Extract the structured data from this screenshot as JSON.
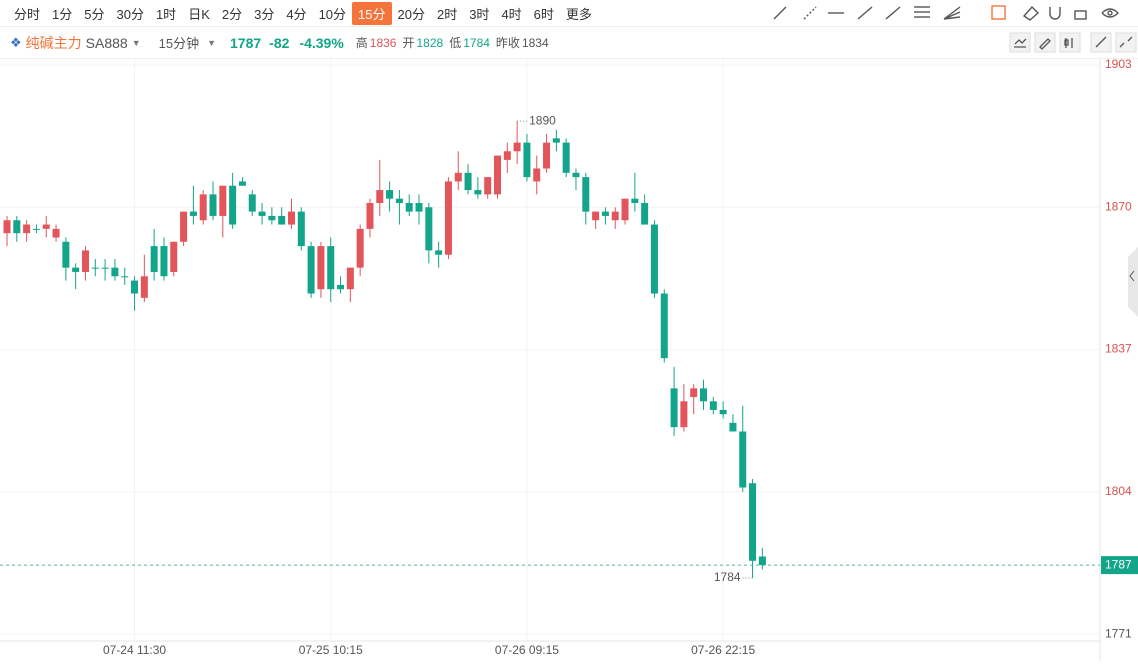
{
  "toolbar": {
    "intervals": [
      "分时",
      "1分",
      "5分",
      "30分",
      "1时",
      "日K",
      "2分",
      "3分",
      "4分",
      "10分",
      "15分",
      "20分",
      "2时",
      "3时",
      "4时",
      "6时",
      "更多"
    ],
    "active": 10
  },
  "header": {
    "name": "纯碱主力",
    "code": "SA888",
    "period": "15分钟",
    "price": 1787,
    "change": -82,
    "change_pct": "-4.39%",
    "stats": [
      {
        "label": "高",
        "value": 1836
      },
      {
        "label": "开",
        "value": 1828
      },
      {
        "label": "低",
        "value": 1784
      },
      {
        "label": "昨收",
        "value": 1834
      }
    ]
  },
  "chart_data": {
    "type": "candlestick",
    "categories": [
      null,
      null,
      null,
      null,
      null,
      null,
      null,
      null,
      null,
      null,
      null,
      null,
      null,
      "07-24 11:30",
      null,
      null,
      null,
      null,
      null,
      null,
      null,
      null,
      null,
      null,
      null,
      null,
      null,
      null,
      null,
      null,
      null,
      null,
      null,
      "07-25 10:15",
      null,
      null,
      null,
      null,
      null,
      null,
      null,
      null,
      null,
      null,
      null,
      null,
      null,
      null,
      null,
      null,
      null,
      null,
      null,
      "07-26 09:15",
      null,
      null,
      null,
      null,
      null,
      null,
      null,
      null,
      null,
      null,
      null,
      null,
      null,
      null,
      null,
      null,
      null,
      null,
      null,
      "07-26 22:15",
      null,
      null,
      null,
      null
    ],
    "open": [
      1864,
      1867,
      1864,
      1865,
      1865,
      1863,
      1862,
      1856,
      1855,
      1856,
      1856,
      1856,
      1854,
      1853,
      1849,
      1861,
      1861,
      1855,
      1862,
      1869,
      1867,
      1873,
      1868,
      1875,
      1876,
      1873,
      1869,
      1868,
      1868,
      1866,
      1869,
      1861,
      1851,
      1861,
      1852,
      1851,
      1856,
      1865,
      1871,
      1874,
      1872,
      1871,
      1871,
      1870,
      1860,
      1859,
      1876,
      1878,
      1874,
      1873,
      1873,
      1881,
      1883,
      1885,
      1876,
      1879,
      1886,
      1885,
      1878,
      1877,
      1867,
      1869,
      1867,
      1867,
      1872,
      1871,
      1866,
      1850,
      1828,
      1819,
      1826,
      1828,
      1825,
      1823,
      1820,
      1818,
      1806,
      1789
    ],
    "high": [
      1868,
      1868,
      1867,
      1866,
      1868,
      1866,
      1863,
      1857,
      1861,
      1858,
      1858,
      1858,
      1856,
      1854,
      1859,
      1865,
      1863,
      1862,
      1869,
      1875,
      1874,
      1876,
      1875,
      1878,
      1877,
      1874,
      1871,
      1870,
      1870,
      1872,
      1870,
      1862,
      1862,
      1863,
      1854,
      1856,
      1866,
      1872,
      1881,
      1876,
      1874,
      1873,
      1873,
      1871,
      1862,
      1877,
      1883,
      1880,
      1877,
      1877,
      1882,
      1885,
      1890,
      1887,
      1882,
      1887,
      1888,
      1886,
      1879,
      1878,
      1869,
      1870,
      1870,
      1872,
      1878,
      1873,
      1867,
      1851,
      1833,
      1829,
      1829,
      1830,
      1826,
      1825,
      1822,
      1824,
      1807,
      1791
    ],
    "low": [
      1861,
      1862,
      1862,
      1864,
      1863,
      1862,
      1853,
      1851,
      1853,
      1854,
      1853,
      1853,
      1852,
      1846,
      1848,
      1853,
      1853,
      1854,
      1861,
      1866,
      1866,
      1867,
      1863,
      1865,
      1875,
      1868,
      1866,
      1866,
      1866,
      1865,
      1860,
      1849,
      1849,
      1848,
      1850,
      1848,
      1854,
      1863,
      1868,
      1869,
      1866,
      1868,
      1866,
      1857,
      1856,
      1858,
      1874,
      1873,
      1872,
      1872,
      1872,
      1878,
      1880,
      1876,
      1873,
      1878,
      1883,
      1877,
      1874,
      1866,
      1865,
      1866,
      1865,
      1866,
      1869,
      1866,
      1849,
      1834,
      1817,
      1818,
      1822,
      1823,
      1822,
      1821,
      1818,
      1804,
      1784,
      1786
    ],
    "close": [
      1867,
      1864,
      1866,
      1865,
      1866,
      1865,
      1856,
      1855,
      1860,
      1856,
      1856,
      1854,
      1854,
      1850,
      1854,
      1855,
      1854,
      1862,
      1869,
      1868,
      1873,
      1868,
      1875,
      1866,
      1875,
      1869,
      1868,
      1867,
      1866,
      1869,
      1861,
      1850,
      1861,
      1851,
      1851,
      1856,
      1865,
      1871,
      1874,
      1872,
      1871,
      1869,
      1869,
      1860,
      1859,
      1876,
      1878,
      1874,
      1873,
      1877,
      1882,
      1883,
      1885,
      1877,
      1879,
      1885,
      1885,
      1878,
      1877,
      1869,
      1869,
      1868,
      1869,
      1872,
      1871,
      1866,
      1850,
      1835,
      1819,
      1825,
      1828,
      1825,
      1823,
      1822,
      1818,
      1805,
      1788,
      1787
    ],
    "ylim": [
      1769.4,
      1904.4
    ],
    "yticks": [
      1903,
      1870,
      1837,
      1804,
      1771
    ],
    "up_color": "#e2555b",
    "down_color": "#12a58a",
    "grid": true,
    "last_price": 1787,
    "annotations": [
      1890,
      1784
    ]
  }
}
